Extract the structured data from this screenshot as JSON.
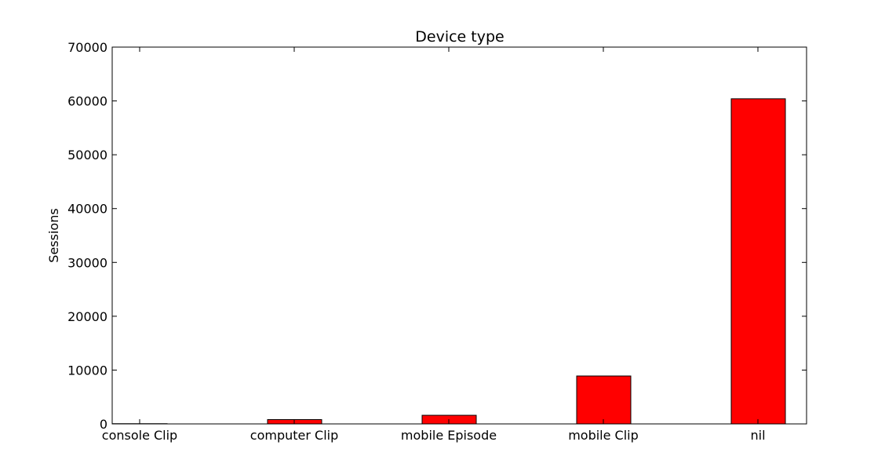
{
  "chart_data": {
    "type": "bar",
    "title": "Device type",
    "xlabel": "",
    "ylabel": "Sessions",
    "categories": [
      "console Clip",
      "computer Clip",
      "mobile Episode",
      "mobile Clip",
      "nil"
    ],
    "values": [
      40,
      800,
      1600,
      8900,
      60400
    ],
    "ylim": [
      0,
      70000
    ],
    "yticks": [
      0,
      10000,
      20000,
      30000,
      40000,
      50000,
      60000,
      70000
    ],
    "bar_color": "#ff0000",
    "edge_color": "#000000",
    "grid": false
  }
}
